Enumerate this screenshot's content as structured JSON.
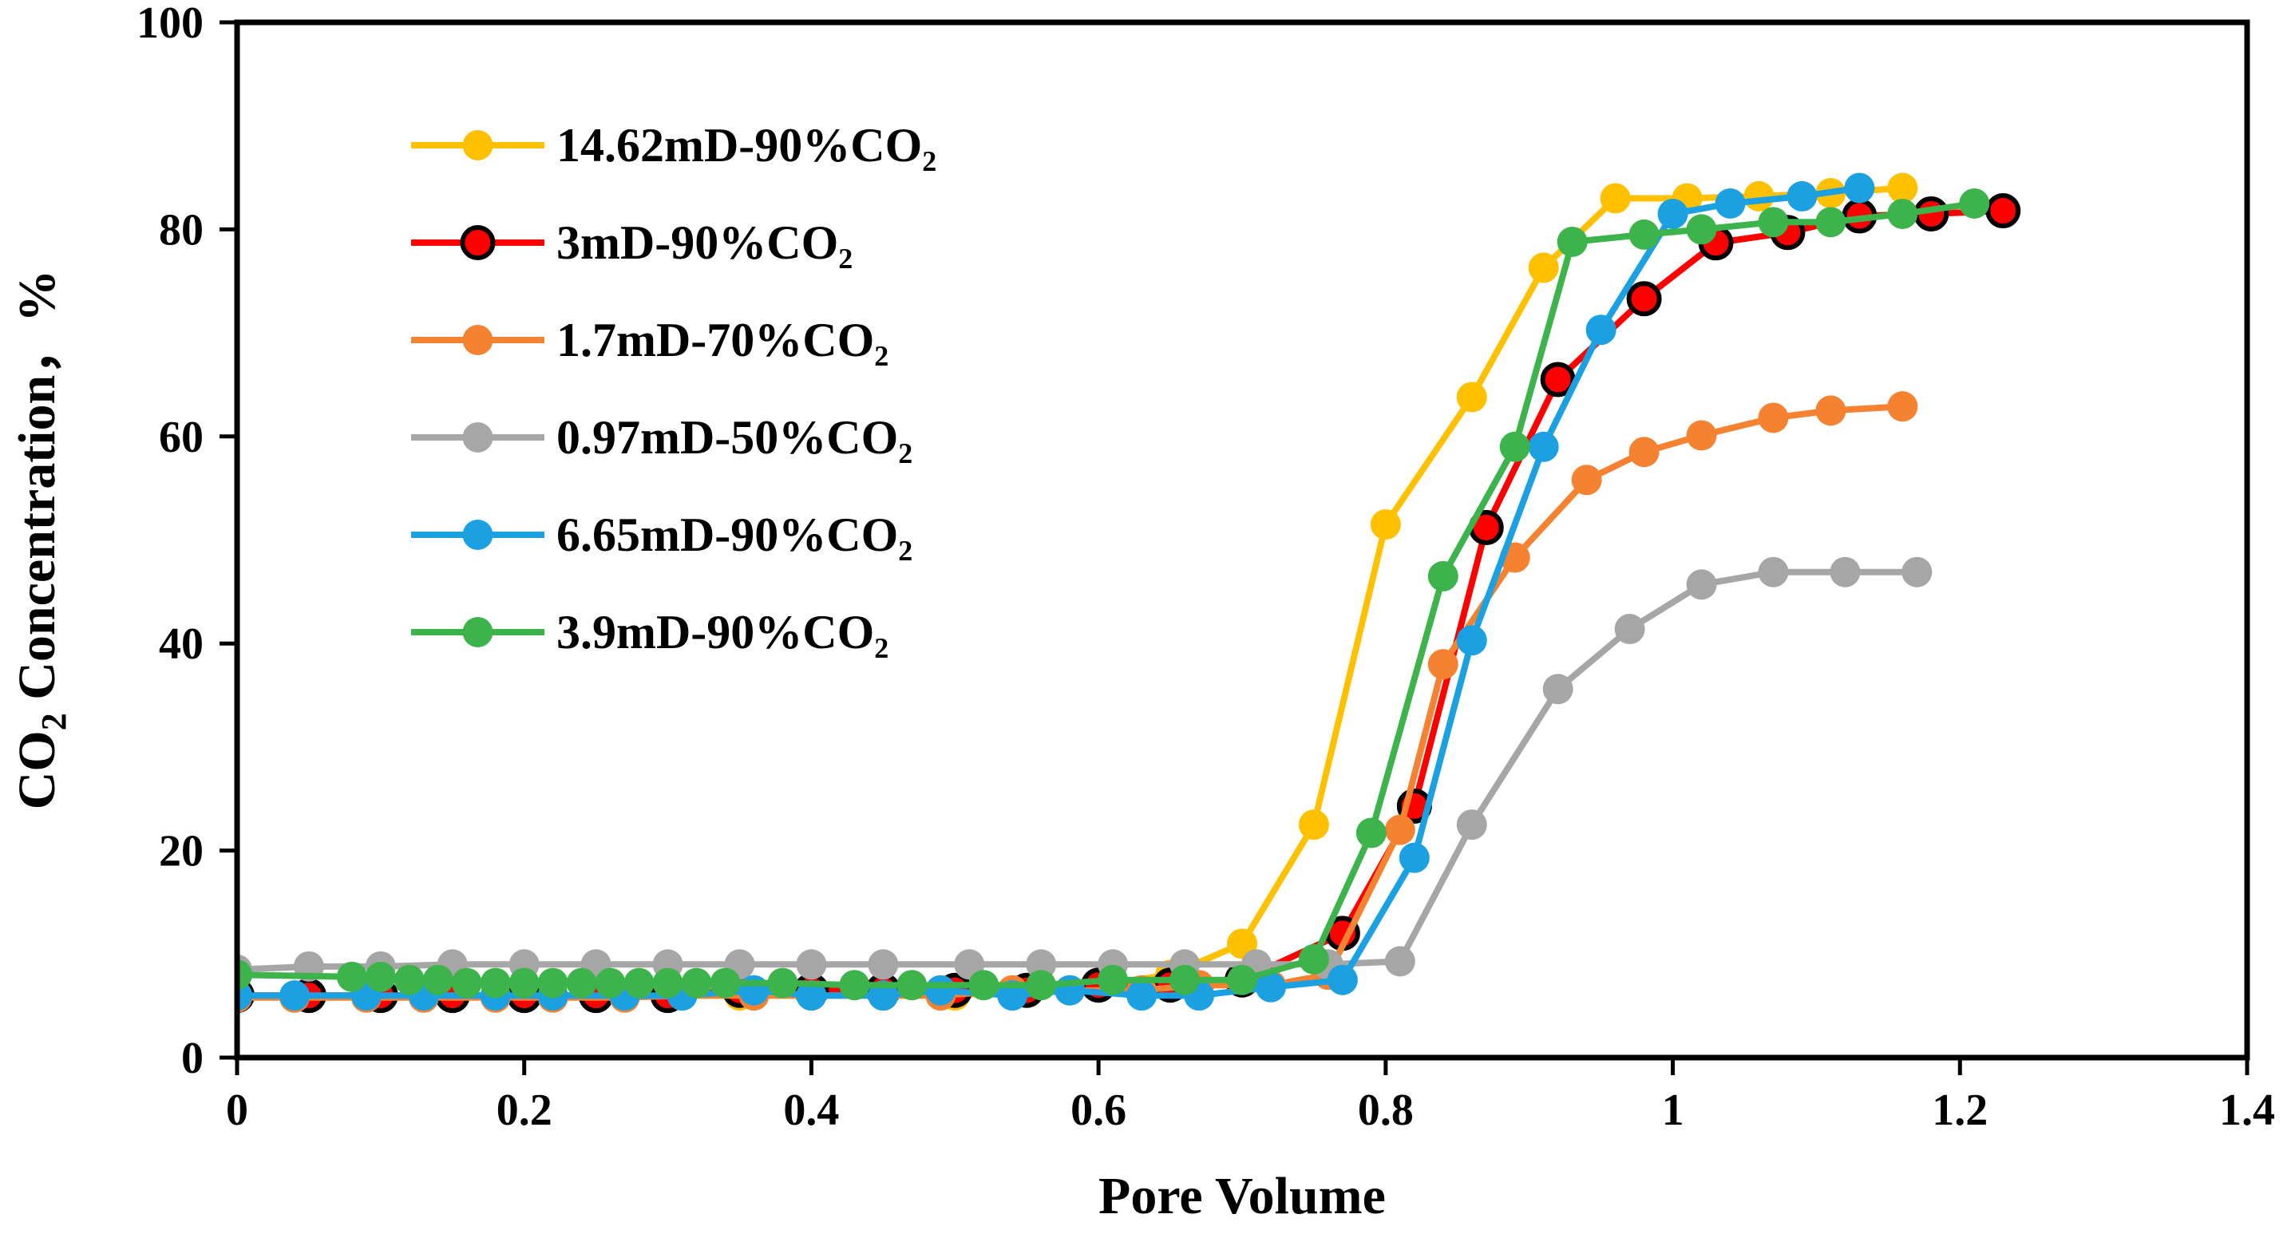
{
  "chart_data": {
    "type": "line",
    "title": "",
    "xlabel": "Pore Volume",
    "ylabel": {
      "prefix": "CO",
      "sub": "2",
      "suffix": " Concentration，%"
    },
    "xlim": [
      0,
      1.4
    ],
    "ylim": [
      0,
      100
    ],
    "xticks": [
      "0",
      "0.2",
      "0.4",
      "0.6",
      "0.8",
      "1",
      "1.2",
      "1.4"
    ],
    "yticks": [
      "0",
      "20",
      "40",
      "60",
      "80",
      "100"
    ],
    "grid": false,
    "legend_position": "top-left",
    "series": [
      {
        "name": "14.62mD-90%CO₂",
        "color": "#FFC000",
        "marker_edge": "#FFC000",
        "x": [
          0,
          0.05,
          0.1,
          0.15,
          0.2,
          0.25,
          0.3,
          0.35,
          0.4,
          0.45,
          0.5,
          0.55,
          0.6,
          0.65,
          0.7,
          0.75,
          0.8,
          0.86,
          0.91,
          0.96,
          1.01,
          1.06,
          1.11,
          1.16
        ],
        "y": [
          6,
          6,
          6,
          6,
          6,
          6,
          6,
          6,
          6,
          6,
          6,
          6.5,
          7,
          8,
          11,
          22.5,
          51.5,
          63.8,
          76.3,
          83,
          83,
          83.2,
          83.5,
          84
        ]
      },
      {
        "name": "3mD-90%CO₂",
        "color": "#FF0000",
        "marker_edge": "#000000",
        "x": [
          0,
          0.05,
          0.1,
          0.15,
          0.2,
          0.25,
          0.3,
          0.35,
          0.4,
          0.45,
          0.5,
          0.55,
          0.6,
          0.65,
          0.7,
          0.77,
          0.82,
          0.87,
          0.92,
          0.98,
          1.03,
          1.08,
          1.13,
          1.18,
          1.23
        ],
        "y": [
          6,
          6,
          6,
          6,
          6,
          6,
          6,
          6.5,
          6.5,
          6.5,
          6.5,
          6.5,
          7,
          7,
          7.5,
          12,
          24.3,
          51.2,
          65.5,
          73.3,
          78.7,
          79.7,
          81.3,
          81.5,
          81.8
        ]
      },
      {
        "name": "1.7mD-70%CO₂",
        "color": "#F58231",
        "marker_edge": "#F58231",
        "x": [
          0,
          0.04,
          0.09,
          0.13,
          0.18,
          0.22,
          0.27,
          0.31,
          0.36,
          0.4,
          0.45,
          0.49,
          0.54,
          0.58,
          0.63,
          0.67,
          0.72,
          0.76,
          0.81,
          0.84,
          0.89,
          0.94,
          0.98,
          1.02,
          1.07,
          1.11,
          1.16
        ],
        "y": [
          5.8,
          5.8,
          5.8,
          5.8,
          5.8,
          5.8,
          5.8,
          6,
          6,
          6,
          6,
          6,
          6.5,
          6.5,
          6.5,
          7,
          7,
          8,
          22,
          38,
          48.3,
          55.8,
          58.5,
          60.1,
          61.8,
          62.5,
          62.9
        ]
      },
      {
        "name": "0.97mD-50%CO₂",
        "color": "#A6A6A6",
        "marker_edge": "#A6A6A6",
        "x": [
          0,
          0.05,
          0.1,
          0.15,
          0.2,
          0.25,
          0.3,
          0.35,
          0.4,
          0.45,
          0.51,
          0.56,
          0.61,
          0.66,
          0.71,
          0.76,
          0.81,
          0.86,
          0.92,
          0.97,
          1.02,
          1.07,
          1.12,
          1.17
        ],
        "y": [
          8.5,
          8.8,
          8.8,
          9,
          9,
          9,
          9,
          9,
          9,
          9,
          9,
          9,
          9,
          9,
          9,
          9,
          9.3,
          22.5,
          35.6,
          41.4,
          45.7,
          46.9,
          46.9,
          46.9
        ]
      },
      {
        "name": "6.65mD-90%CO₂",
        "color": "#1BA1E2",
        "marker_edge": "#1BA1E2",
        "x": [
          0,
          0.04,
          0.09,
          0.13,
          0.18,
          0.22,
          0.27,
          0.31,
          0.36,
          0.4,
          0.45,
          0.49,
          0.54,
          0.58,
          0.63,
          0.67,
          0.72,
          0.77,
          0.82,
          0.86,
          0.91,
          0.95,
          1.0,
          1.04,
          1.09,
          1.13
        ],
        "y": [
          6,
          6,
          6,
          6,
          6,
          6,
          6,
          6,
          6.5,
          6,
          6,
          6.5,
          6,
          6.5,
          6,
          6,
          6.8,
          7.5,
          19.3,
          40.3,
          59,
          70.3,
          81.5,
          82.5,
          83.2,
          84
        ]
      },
      {
        "name": "3.9mD-90%CO₂",
        "color": "#3CB44B",
        "marker_edge": "#3CB44B",
        "x": [
          0,
          0.08,
          0.1,
          0.12,
          0.14,
          0.16,
          0.18,
          0.2,
          0.22,
          0.24,
          0.26,
          0.28,
          0.3,
          0.32,
          0.34,
          0.38,
          0.43,
          0.47,
          0.52,
          0.56,
          0.61,
          0.66,
          0.7,
          0.75,
          0.79,
          0.84,
          0.89,
          0.93,
          0.98,
          1.02,
          1.07,
          1.11,
          1.16,
          1.21
        ],
        "y": [
          8,
          7.8,
          7.8,
          7.5,
          7.5,
          7.2,
          7.2,
          7.2,
          7.2,
          7.2,
          7.2,
          7.2,
          7.2,
          7.2,
          7.2,
          7.2,
          7,
          7,
          7,
          7,
          7.5,
          7.5,
          7.5,
          9.5,
          21.7,
          46.5,
          59,
          78.8,
          79.5,
          80,
          80.7,
          80.7,
          81.5,
          82.5
        ]
      }
    ]
  }
}
